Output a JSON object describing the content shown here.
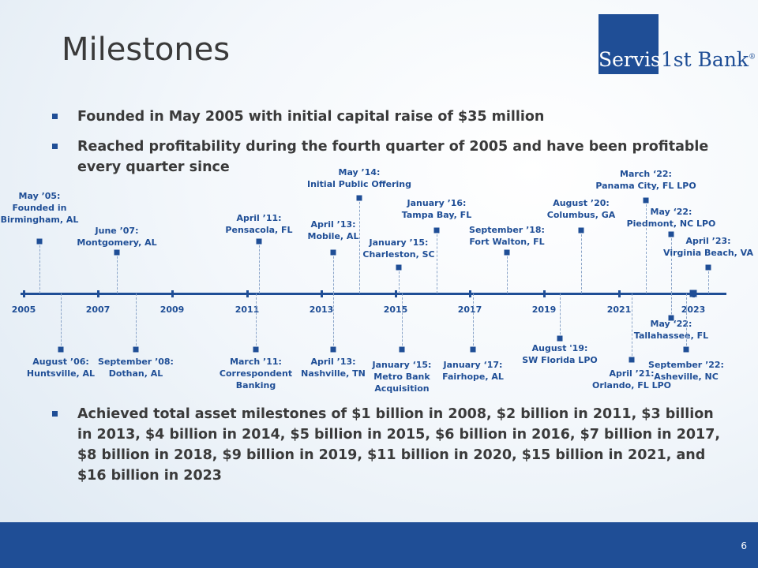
{
  "title": "Milestones",
  "logo": {
    "part1": "Servis",
    "part2": "1st Bank",
    "reg": "®"
  },
  "bullets_top": [
    "Founded in May 2005 with initial capital raise of $35 million",
    "Reached profitability during the fourth quarter of 2005 and have been profitable every quarter since"
  ],
  "bullets_bottom": [
    "Achieved total asset milestones of $1 billion in 2008, $2 billion in 2011, $3 billion in 2013, $4 billion in 2014, $5 billion in 2015, $6 billion in 2016,  $7 billion in 2017, $8 billion in 2018, $9 billion in 2019, $11 billion in 2020, $15 billion in 2021, and $16 billion in 2023"
  ],
  "years": [
    "2005",
    "2007",
    "2009",
    "2011",
    "2013",
    "2015",
    "2017",
    "2019",
    "2021",
    "2023"
  ],
  "events_above": [
    {
      "lines": [
        "May ’05:",
        "Founded in",
        "Birmingham, AL"
      ]
    },
    {
      "lines": [
        "June ’07:",
        "Montgomery, AL"
      ]
    },
    {
      "lines": [
        "April ’11:",
        "Pensacola, FL"
      ]
    },
    {
      "lines": [
        "April ’13:",
        "Mobile, AL"
      ]
    },
    {
      "lines": [
        "May ’14:",
        "Initial Public Offering"
      ]
    },
    {
      "lines": [
        "January ’15:",
        "Charleston, SC"
      ]
    },
    {
      "lines": [
        "January ’16:",
        "Tampa Bay, FL"
      ]
    },
    {
      "lines": [
        "September ’18:",
        "Fort Walton, FL"
      ]
    },
    {
      "lines": [
        "August ’20:",
        "Columbus, GA"
      ]
    },
    {
      "lines": [
        "March ‘22:",
        "Panama City, FL LPO"
      ]
    },
    {
      "lines": [
        "May ‘22:",
        "Piedmont, NC LPO"
      ]
    },
    {
      "lines": [
        "April ’23:",
        "Virginia Beach, VA"
      ]
    }
  ],
  "events_below": [
    {
      "lines": [
        "August ’06:",
        "Huntsville, AL"
      ]
    },
    {
      "lines": [
        "September ’08:",
        "Dothan, AL"
      ]
    },
    {
      "lines": [
        "March ’11:",
        "Correspondent",
        "Banking"
      ]
    },
    {
      "lines": [
        "April ’13:",
        "Nashville, TN"
      ]
    },
    {
      "lines": [
        "January ‘15:",
        "Metro Bank",
        "Acquisition"
      ]
    },
    {
      "lines": [
        "January ‘17:",
        "Fairhope, AL"
      ]
    },
    {
      "lines": [
        "August '19:",
        "SW Florida LPO"
      ]
    },
    {
      "lines": [
        "April ’21:",
        "Orlando, FL LPO"
      ]
    },
    {
      "lines": [
        "May ‘22:",
        "Tallahassee,  FL"
      ]
    },
    {
      "lines": [
        "September ’22:",
        "Asheville, NC"
      ]
    }
  ],
  "page_number": "6"
}
